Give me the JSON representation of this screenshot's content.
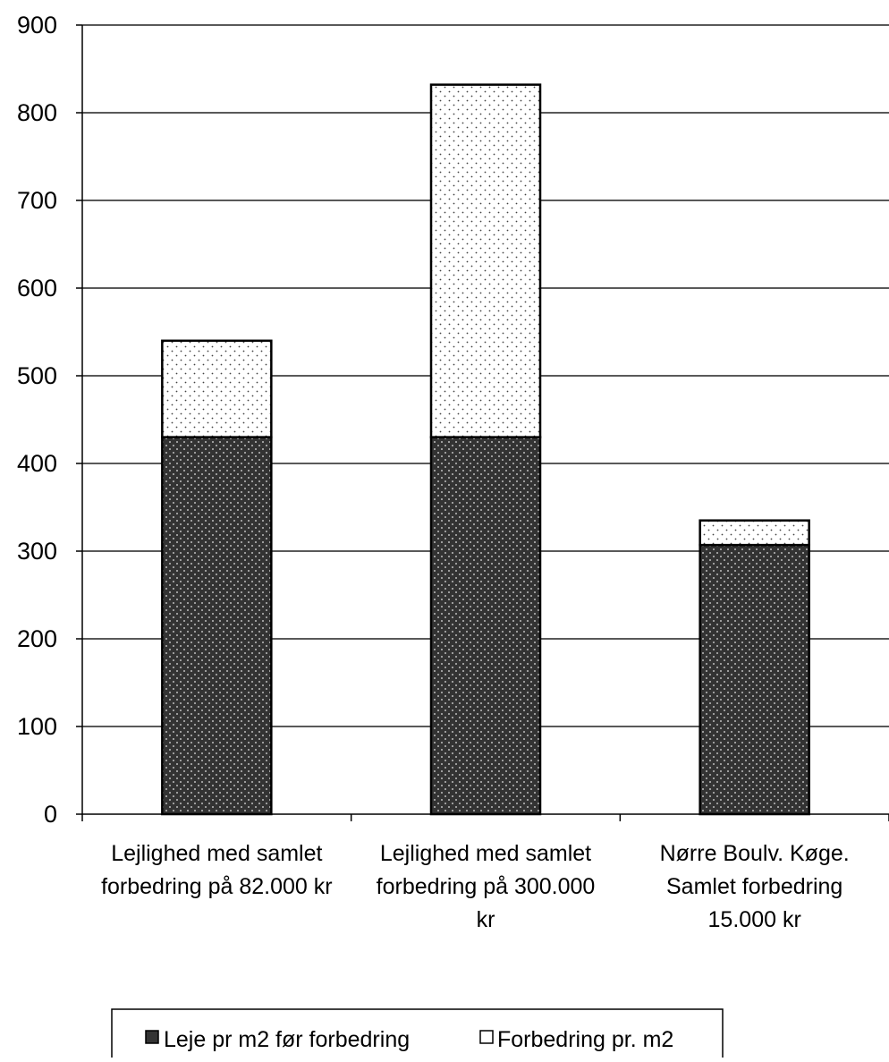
{
  "chart_data": {
    "type": "bar",
    "stacked": true,
    "categories": [
      [
        "Lejlighed med samlet",
        "forbedring på 82.000 kr"
      ],
      [
        "Lejlighed med samlet",
        "forbedring på 300.000",
        "kr"
      ],
      [
        "Nørre Boulv. Køge.",
        "Samlet forbedring",
        "15.000 kr"
      ]
    ],
    "series": [
      {
        "name": "Leje pr m2 før forbedring",
        "values": [
          430,
          430,
          307
        ],
        "fill": "#333333",
        "dot": "#e8e8e8"
      },
      {
        "name": "Forbedring pr. m2",
        "values": [
          110,
          402,
          28
        ],
        "fill": "#ffffff",
        "dot": "#444444"
      }
    ],
    "yticks": [
      0,
      100,
      200,
      300,
      400,
      500,
      600,
      700,
      800,
      900
    ],
    "ylim": [
      0,
      900
    ],
    "grid": true,
    "legend_position": "bottom",
    "title": "",
    "xlabel": "",
    "ylabel": ""
  }
}
